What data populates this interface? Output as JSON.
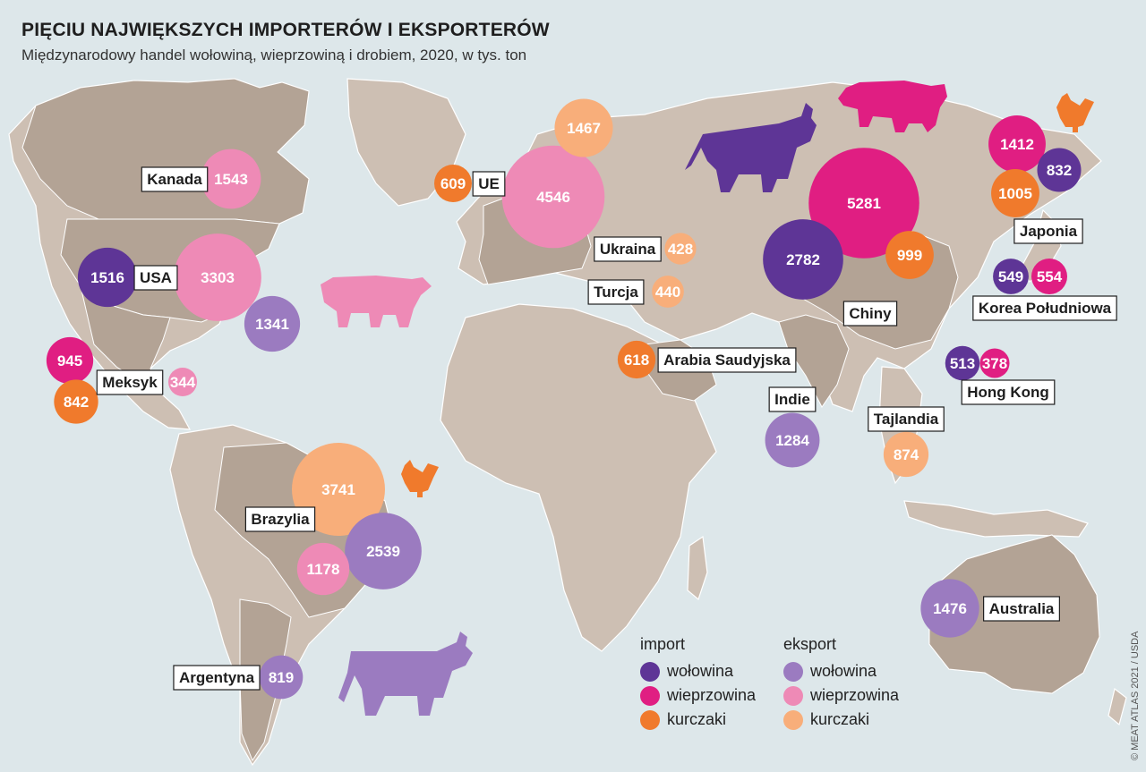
{
  "title": "PIĘCIU NAJWIĘKSZYCH IMPORTERÓW I EKSPORTERÓW",
  "subtitle": "Międzynarodowy handel wołowiną, wieprzowiną i drobiem, 2020, w tys. ton",
  "credit": "© MEAT ATLAS 2021 / USDA",
  "colors": {
    "ocean": "#dde7ea",
    "land": "#cdbfb3",
    "land_highlight": "#b3a395",
    "border": "#ffffff",
    "import_wolowina": "#5e3596",
    "import_wieprzowina": "#e01e82",
    "import_kurczaki": "#f07a2c",
    "eksport_wolowina": "#9b7bc0",
    "eksport_wieprzowina": "#ee8ab6",
    "eksport_kurczaki": "#f8ae7a"
  },
  "legend": {
    "import": {
      "label": "import",
      "items": [
        {
          "key": "import_wolowina",
          "label": "wołowina"
        },
        {
          "key": "import_wieprzowina",
          "label": "wieprzowina"
        },
        {
          "key": "import_kurczaki",
          "label": "kurczaki"
        }
      ]
    },
    "eksport": {
      "label": "eksport",
      "items": [
        {
          "key": "eksport_wolowina",
          "label": "wołowina"
        },
        {
          "key": "eksport_wieprzowina",
          "label": "wieprzowina"
        },
        {
          "key": "eksport_kurczaki",
          "label": "kurczaki"
        }
      ]
    }
  },
  "countries": [
    {
      "name": "Kanada",
      "bubbles": [
        {
          "type": "eksport_wieprzowina",
          "value": 1543
        }
      ]
    },
    {
      "name": "USA",
      "bubbles": [
        {
          "type": "import_wolowina",
          "value": 1516
        },
        {
          "type": "eksport_wieprzowina",
          "value": 3303
        },
        {
          "type": "eksport_wolowina",
          "value": 1341
        }
      ]
    },
    {
      "name": "Meksyk",
      "bubbles": [
        {
          "type": "import_wieprzowina",
          "value": 945
        },
        {
          "type": "import_kurczaki",
          "value": 842
        },
        {
          "type": "eksport_wieprzowina",
          "value": 344
        }
      ]
    },
    {
      "name": "UE",
      "bubbles": [
        {
          "type": "import_kurczaki",
          "value": 609
        },
        {
          "type": "eksport_wieprzowina",
          "value": 4546
        },
        {
          "type": "eksport_kurczaki",
          "value": 1467
        }
      ]
    },
    {
      "name": "Ukraina",
      "bubbles": [
        {
          "type": "eksport_kurczaki",
          "value": 428
        }
      ]
    },
    {
      "name": "Turcja",
      "bubbles": [
        {
          "type": "eksport_kurczaki",
          "value": 440
        }
      ]
    },
    {
      "name": "Arabia Saudyjska",
      "bubbles": [
        {
          "type": "import_kurczaki",
          "value": 618
        }
      ]
    },
    {
      "name": "Chiny",
      "bubbles": [
        {
          "type": "import_wieprzowina",
          "value": 5281
        },
        {
          "type": "import_wolowina",
          "value": 2782
        },
        {
          "type": "import_kurczaki",
          "value": 999
        }
      ]
    },
    {
      "name": "Japonia",
      "bubbles": [
        {
          "type": "import_wieprzowina",
          "value": 1412
        },
        {
          "type": "import_wolowina",
          "value": 832
        },
        {
          "type": "import_kurczaki",
          "value": 1005
        }
      ]
    },
    {
      "name": "Korea Południowa",
      "bubbles": [
        {
          "type": "import_wolowina",
          "value": 549
        },
        {
          "type": "import_wieprzowina",
          "value": 554
        }
      ]
    },
    {
      "name": "Hong Kong",
      "bubbles": [
        {
          "type": "import_wolowina",
          "value": 513
        },
        {
          "type": "import_wieprzowina",
          "value": 378
        }
      ]
    },
    {
      "name": "Indie",
      "bubbles": [
        {
          "type": "eksport_wolowina",
          "value": 1284
        }
      ]
    },
    {
      "name": "Tajlandia",
      "bubbles": [
        {
          "type": "eksport_kurczaki",
          "value": 874
        }
      ]
    },
    {
      "name": "Brazylia",
      "bubbles": [
        {
          "type": "eksport_kurczaki",
          "value": 3741
        },
        {
          "type": "eksport_wolowina",
          "value": 2539
        },
        {
          "type": "eksport_wieprzowina",
          "value": 1178
        }
      ]
    },
    {
      "name": "Argentyna",
      "bubbles": [
        {
          "type": "eksport_wolowina",
          "value": 819
        }
      ]
    },
    {
      "name": "Australia",
      "bubbles": [
        {
          "type": "eksport_wolowina",
          "value": 1476
        }
      ]
    }
  ]
}
